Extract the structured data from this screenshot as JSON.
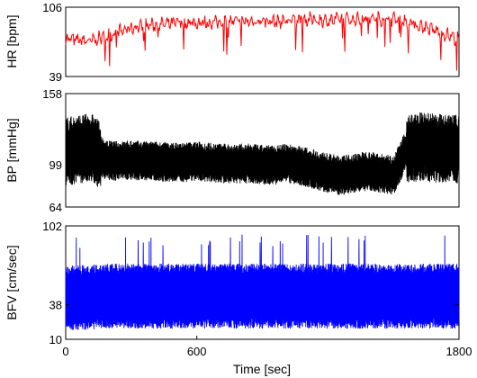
{
  "chart_data": [
    {
      "type": "line",
      "ylabel": "HR [bpm]",
      "ylim": [
        39,
        106
      ],
      "yticks": [
        39,
        106
      ],
      "xlim": [
        0,
        1800
      ],
      "color": "#ff0000",
      "series": [
        {
          "x": [
            0,
            60,
            120,
            180,
            240,
            300,
            360,
            420,
            480,
            540,
            600,
            660,
            720,
            780,
            840,
            900,
            960,
            1020,
            1080,
            1140,
            1200,
            1260,
            1320,
            1380,
            1440,
            1500,
            1560,
            1620,
            1680,
            1740,
            1800
          ],
          "values": [
            75,
            74,
            73,
            78,
            82,
            86,
            88,
            89,
            90,
            91,
            91,
            91,
            92,
            92,
            92,
            93,
            92,
            93,
            94,
            94,
            93,
            94,
            94,
            95,
            95,
            95,
            92,
            88,
            84,
            80,
            75
          ]
        }
      ]
    },
    {
      "type": "line",
      "ylabel": "BP [mmHg]",
      "ylim": [
        64,
        158
      ],
      "yticks": [
        64,
        99,
        158
      ],
      "xlim": [
        0,
        1800
      ],
      "color": "#000000",
      "series": [
        {
          "x": [
            0,
            60,
            120,
            180,
            240,
            300,
            360,
            420,
            480,
            540,
            600,
            660,
            720,
            780,
            840,
            900,
            960,
            1020,
            1080,
            1140,
            1200,
            1260,
            1320,
            1380,
            1440,
            1500,
            1560,
            1620,
            1680,
            1740,
            1800
          ],
          "values": [
            110,
            112,
            113,
            103,
            102,
            103,
            102,
            102,
            101,
            101,
            102,
            101,
            100,
            100,
            100,
            99,
            99,
            100,
            98,
            95,
            92,
            90,
            92,
            94,
            92,
            90,
            112,
            114,
            113,
            112,
            112
          ]
        }
      ]
    },
    {
      "type": "line",
      "ylabel": "BFV [cm/sec]",
      "ylim": [
        10,
        102
      ],
      "yticks": [
        10,
        38,
        102
      ],
      "xlim": [
        0,
        1800
      ],
      "xticks": [
        0,
        600,
        1800
      ],
      "xlabel": "Time [sec]",
      "color": "#0000ff",
      "series": [
        {
          "x": [
            0,
            60,
            120,
            180,
            240,
            300,
            360,
            420,
            480,
            540,
            600,
            660,
            720,
            780,
            840,
            900,
            960,
            1020,
            1080,
            1140,
            1200,
            1260,
            1320,
            1380,
            1440,
            1500,
            1560,
            1620,
            1680,
            1740,
            1800
          ],
          "values": [
            44,
            44,
            44,
            45,
            45,
            45,
            45,
            45,
            45,
            45,
            45,
            45,
            45,
            45,
            45,
            45,
            45,
            45,
            45,
            45,
            45,
            45,
            45,
            45,
            45,
            45,
            45,
            45,
            45,
            45,
            45
          ]
        }
      ]
    }
  ]
}
